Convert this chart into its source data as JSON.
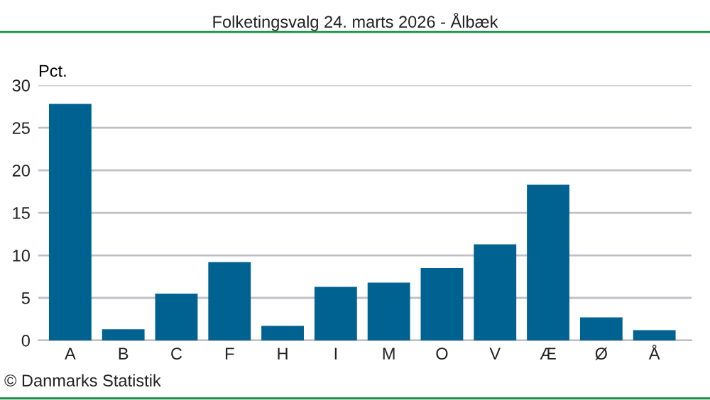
{
  "chart_data": {
    "type": "bar",
    "title": "Folketingsvalg 24. marts 2026 - Ålbæk",
    "ylabel": "Pct.",
    "categories": [
      "A",
      "B",
      "C",
      "F",
      "H",
      "I",
      "M",
      "O",
      "V",
      "Æ",
      "Ø",
      "Å"
    ],
    "values": [
      27.8,
      1.3,
      5.5,
      9.2,
      1.7,
      6.3,
      6.8,
      8.5,
      11.3,
      18.3,
      2.7,
      1.2
    ],
    "color": "#006290",
    "ylim": [
      0,
      30
    ],
    "yticks": [
      0,
      5,
      10,
      15,
      20,
      25,
      30
    ],
    "grid": "y",
    "annotations": [
      "© Danmarks Statistik"
    ]
  }
}
